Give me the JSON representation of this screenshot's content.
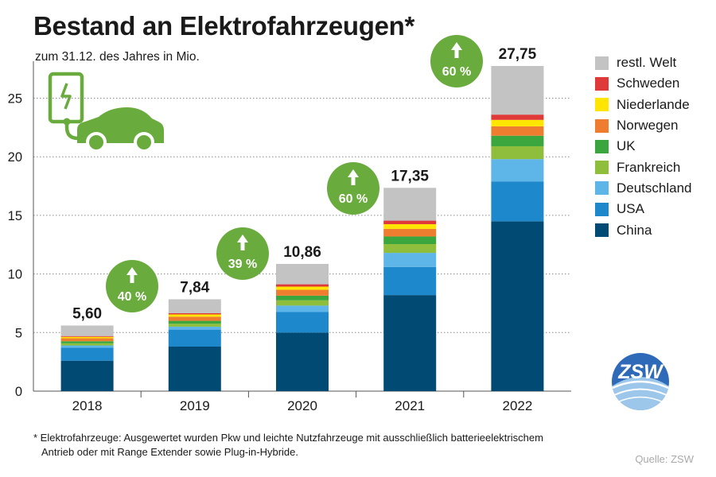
{
  "title": "Bestand an Elektrofahrzeugen*",
  "subtitle": "zum 31.12. des Jahres in Mio.",
  "footnote": {
    "line1": "* Elektrofahrzeuge: Ausgewertet wurden Pkw und leichte Nutzfahrzeuge mit ausschließlich batterieelektrischem",
    "line2": "Antrieb oder mit Range Extender sowie Plug-in-Hybride."
  },
  "source": "Quelle: ZSW",
  "logo_text": "ZSW",
  "colors": {
    "China": "#004a73",
    "USA": "#1e88cc",
    "Deutschland": "#5db5e8",
    "Frankreich": "#8fbe3d",
    "UK": "#3aa63d",
    "Norwegen": "#ef7d2f",
    "Niederlande": "#ffe500",
    "Schweden": "#e0393a",
    "restl. Welt": "#c3c3c3",
    "growth_badge": "#6aab3e",
    "icon_green": "#6aab3e"
  },
  "icons": [
    "ev-charger-icon",
    "car-icon",
    "arrow-up-icon",
    "zsw-logo"
  ],
  "legend": [
    "restl. Welt",
    "Schweden",
    "Niederlande",
    "Norwegen",
    "UK",
    "Frankreich",
    "Deutschland",
    "USA",
    "China"
  ],
  "chart_data": {
    "type": "bar",
    "stacked": true,
    "categories": [
      "2018",
      "2019",
      "2020",
      "2021",
      "2022"
    ],
    "ylim": [
      0,
      27.75
    ],
    "yticks": [
      0,
      5,
      10,
      15,
      20,
      25
    ],
    "grid": "horizontal dotted",
    "legend_position": "right",
    "series": [
      {
        "name": "China",
        "values": [
          2.6,
          3.8,
          5.0,
          8.2,
          14.5
        ]
      },
      {
        "name": "USA",
        "values": [
          1.1,
          1.45,
          1.75,
          2.4,
          3.4
        ]
      },
      {
        "name": "Deutschland",
        "values": [
          0.2,
          0.25,
          0.55,
          1.2,
          1.9
        ]
      },
      {
        "name": "Frankreich",
        "values": [
          0.18,
          0.25,
          0.45,
          0.75,
          1.1
        ]
      },
      {
        "name": "UK",
        "values": [
          0.18,
          0.25,
          0.4,
          0.65,
          0.9
        ]
      },
      {
        "name": "Norwegen",
        "values": [
          0.25,
          0.35,
          0.5,
          0.65,
          0.8
        ]
      },
      {
        "name": "Niederlande",
        "values": [
          0.12,
          0.2,
          0.27,
          0.4,
          0.55
        ]
      },
      {
        "name": "Schweden",
        "values": [
          0.07,
          0.1,
          0.2,
          0.3,
          0.45
        ]
      },
      {
        "name": "restl. Welt",
        "values": [
          0.9,
          1.19,
          1.74,
          2.8,
          4.15
        ]
      }
    ],
    "totals": [
      "5,60",
      "7,84",
      "10,86",
      "17,35",
      "27,75"
    ],
    "growth": [
      {
        "label": "40 %",
        "year": "2019"
      },
      {
        "label": "39 %",
        "year": "2020"
      },
      {
        "label": "60 %",
        "year": "2021"
      },
      {
        "label": "60 %",
        "year": "2022"
      }
    ]
  }
}
